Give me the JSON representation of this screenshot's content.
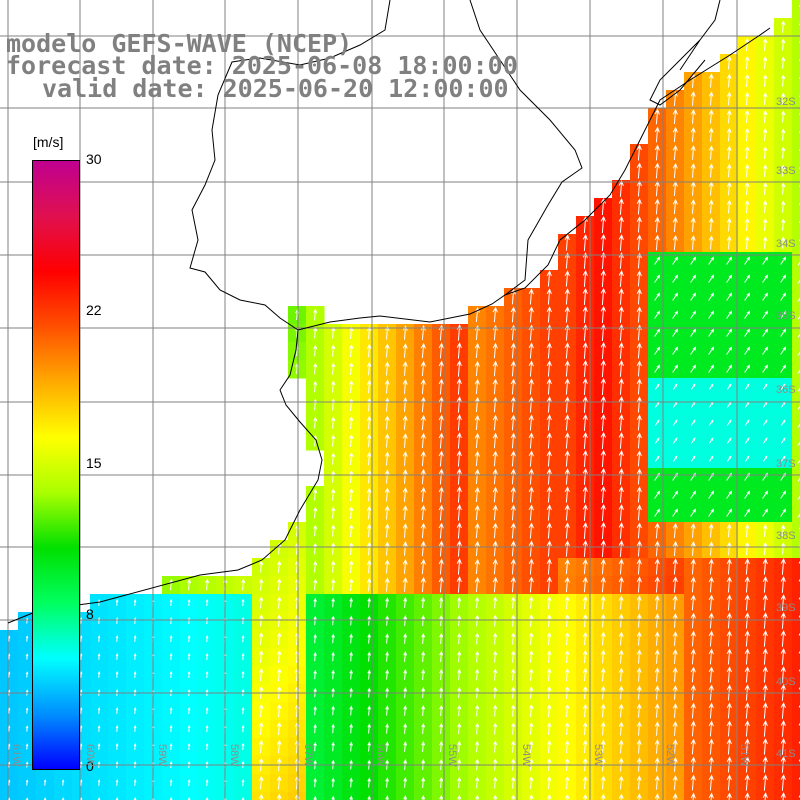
{
  "titles": {
    "line1": "modelo GEFS-WAVE (NCEP)",
    "line2": "forecast date: 2025-06-08 18:00:00",
    "line3": "valid date: 2025-06-20 12:00:00"
  },
  "colorbar": {
    "unit": "[m/s]",
    "ticks": [
      "30",
      "22",
      "15",
      "8",
      "0"
    ],
    "colors": [
      "#0000ff",
      "#0090ff",
      "#00ffff",
      "#00ff60",
      "#00e000",
      "#aaff00",
      "#ffff00",
      "#ffaa00",
      "#ff5000",
      "#ff0000",
      "#e01050",
      "#c00090"
    ]
  },
  "grid": {
    "lat_labels": [
      "32S",
      "33S",
      "34S",
      "35S",
      "36S",
      "37S",
      "38S",
      "39S",
      "40S",
      "41S"
    ],
    "lon_labels": [
      "61W",
      "60W",
      "59W",
      "58W",
      "57W",
      "56W",
      "55W",
      "54W",
      "53W",
      "52W",
      "51W"
    ]
  },
  "colors": {
    "land": "#ffffff",
    "grid_line": "#808080",
    "coast": "#000000",
    "arrow": "#ffffff",
    "title": "#808080"
  }
}
